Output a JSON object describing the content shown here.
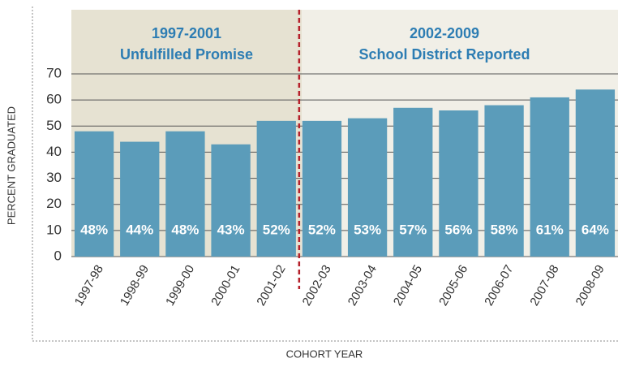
{
  "chart_data": {
    "type": "bar",
    "y_label": "PERCENT GRADUATED",
    "x_label": "COHORT YEAR",
    "periods": [
      {
        "title": "1997-2001",
        "subtitle": "Unfulfilled Promise"
      },
      {
        "title": "2002-2009",
        "subtitle": "School District Reported"
      }
    ],
    "categories": [
      "1997-98",
      "1998-99",
      "1999-00",
      "2000-01",
      "2001-02",
      "2002-03",
      "2003-04",
      "2004-05",
      "2005-06",
      "2006-07",
      "2007-08",
      "2008-09"
    ],
    "values": [
      48,
      44,
      48,
      43,
      52,
      52,
      53,
      57,
      56,
      58,
      61,
      64
    ],
    "value_labels": [
      "48%",
      "44%",
      "48%",
      "43%",
      "52%",
      "52%",
      "53%",
      "57%",
      "56%",
      "58%",
      "61%",
      "64%"
    ],
    "color": "#5b9cba",
    "ylim": [
      0,
      70
    ],
    "yticks": [
      0,
      10,
      20,
      30,
      40,
      50,
      60,
      70
    ],
    "grid": true
  }
}
